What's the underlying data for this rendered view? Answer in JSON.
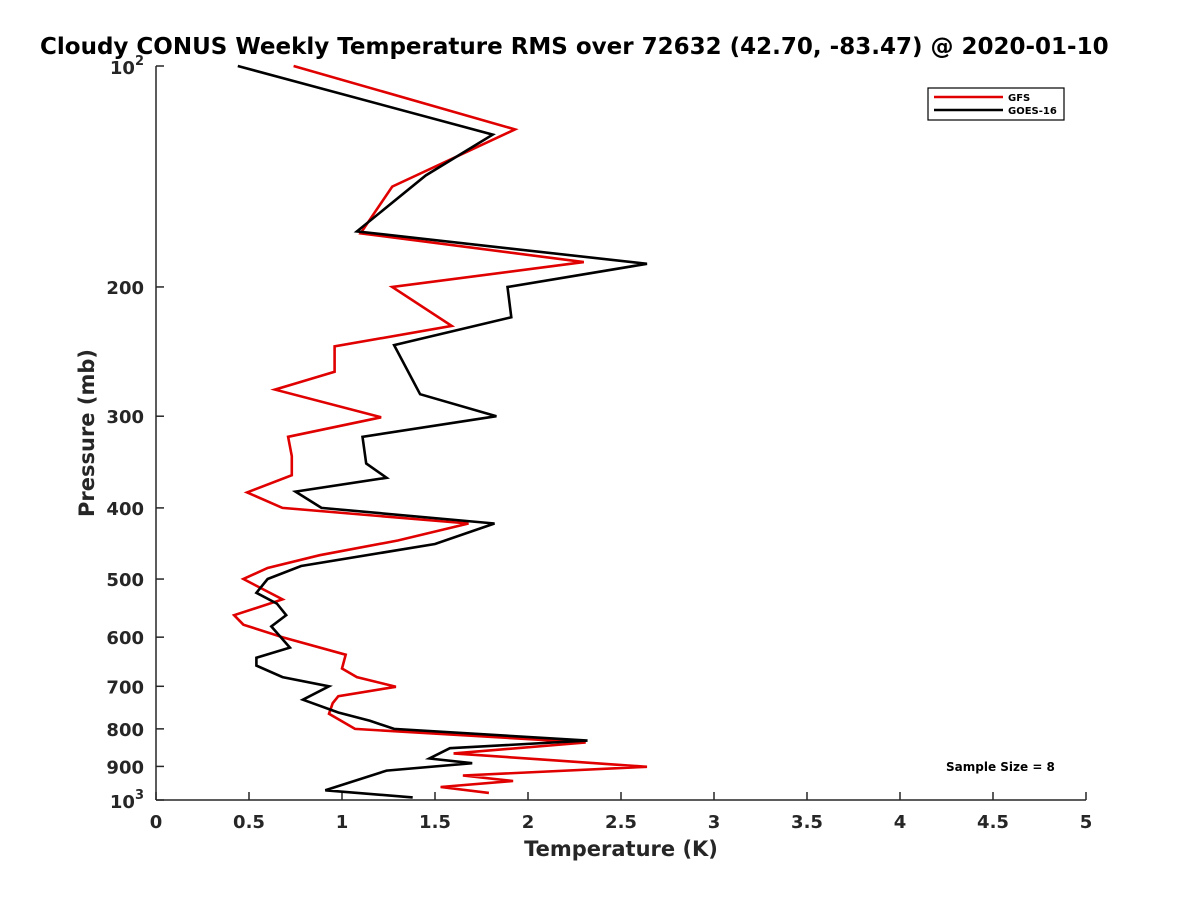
{
  "chart_data": {
    "type": "line",
    "title": "Cloudy CONUS Weekly Temperature RMS over 72632 (42.70, -83.47) @ 2020-01-10",
    "xlabel": "Temperature (K)",
    "ylabel": "Pressure (mb)",
    "xlim": [
      0,
      5
    ],
    "ylim": [
      100,
      1000
    ],
    "y_scale": "log",
    "y_reversed": true,
    "grid": false,
    "legend_placement": "top-right",
    "x_ticks": [
      {
        "value": 0,
        "label": "0"
      },
      {
        "value": 0.5,
        "label": "0.5"
      },
      {
        "value": 1,
        "label": "1"
      },
      {
        "value": 1.5,
        "label": "1.5"
      },
      {
        "value": 2,
        "label": "2"
      },
      {
        "value": 2.5,
        "label": "2.5"
      },
      {
        "value": 3,
        "label": "3"
      },
      {
        "value": 3.5,
        "label": "3.5"
      },
      {
        "value": 4,
        "label": "4"
      },
      {
        "value": 4.5,
        "label": "4.5"
      },
      {
        "value": 5,
        "label": "5"
      }
    ],
    "y_ticks": [
      {
        "value": 100,
        "base": "10",
        "exp": "2"
      },
      {
        "value": 200,
        "label": "200"
      },
      {
        "value": 300,
        "label": "300"
      },
      {
        "value": 400,
        "label": "400"
      },
      {
        "value": 500,
        "label": "500"
      },
      {
        "value": 600,
        "label": "600"
      },
      {
        "value": 700,
        "label": "700"
      },
      {
        "value": 800,
        "label": "800"
      },
      {
        "value": 900,
        "label": "900"
      },
      {
        "value": 1000,
        "base": "10",
        "exp": "3"
      }
    ],
    "annotation": "Sample Size = 8",
    "series": [
      {
        "name": "GFS",
        "color": "#e00000",
        "points": [
          [
            0.74,
            100
          ],
          [
            1.93,
            122
          ],
          [
            1.27,
            146
          ],
          [
            1.1,
            169
          ],
          [
            2.3,
            185
          ],
          [
            1.27,
            200
          ],
          [
            1.59,
            226
          ],
          [
            0.96,
            241
          ],
          [
            0.96,
            261
          ],
          [
            0.64,
            276
          ],
          [
            1.21,
            301
          ],
          [
            0.71,
            320
          ],
          [
            0.73,
            340
          ],
          [
            0.73,
            361
          ],
          [
            0.49,
            381
          ],
          [
            0.68,
            400
          ],
          [
            1.68,
            420
          ],
          [
            1.3,
            443
          ],
          [
            0.88,
            464
          ],
          [
            0.6,
            483
          ],
          [
            0.47,
            500
          ],
          [
            0.68,
            533
          ],
          [
            0.42,
            560
          ],
          [
            0.47,
            577
          ],
          [
            0.68,
            600
          ],
          [
            1.02,
            634
          ],
          [
            1.0,
            662
          ],
          [
            1.08,
            680
          ],
          [
            1.29,
            701
          ],
          [
            0.98,
            722
          ],
          [
            0.95,
            738
          ],
          [
            0.93,
            763
          ],
          [
            1.07,
            800
          ],
          [
            2.31,
            835
          ],
          [
            1.6,
            864
          ],
          [
            2.06,
            880
          ],
          [
            2.64,
            901
          ],
          [
            1.65,
            926
          ],
          [
            1.92,
            942
          ],
          [
            1.53,
            960
          ],
          [
            1.79,
            978
          ]
        ]
      },
      {
        "name": "GOES-16",
        "color": "#000000",
        "points": [
          [
            0.44,
            100
          ],
          [
            1.81,
            124
          ],
          [
            1.45,
            141
          ],
          [
            1.08,
            168
          ],
          [
            2.64,
            186
          ],
          [
            1.89,
            200
          ],
          [
            1.91,
            220
          ],
          [
            1.28,
            240
          ],
          [
            1.42,
            280
          ],
          [
            1.83,
            300
          ],
          [
            1.11,
            320
          ],
          [
            1.13,
            348
          ],
          [
            1.24,
            364
          ],
          [
            0.75,
            380
          ],
          [
            0.89,
            400
          ],
          [
            1.82,
            420
          ],
          [
            1.5,
            448
          ],
          [
            0.78,
            480
          ],
          [
            0.6,
            500
          ],
          [
            0.54,
            522
          ],
          [
            0.65,
            540
          ],
          [
            0.7,
            560
          ],
          [
            0.62,
            580
          ],
          [
            0.72,
            620
          ],
          [
            0.54,
            640
          ],
          [
            0.54,
            656
          ],
          [
            0.68,
            680
          ],
          [
            0.93,
            700
          ],
          [
            0.79,
            730
          ],
          [
            0.98,
            760
          ],
          [
            1.15,
            780
          ],
          [
            1.28,
            800
          ],
          [
            2.32,
            830
          ],
          [
            1.58,
            850
          ],
          [
            1.47,
            878
          ],
          [
            1.7,
            891
          ],
          [
            1.24,
            912
          ],
          [
            0.91,
            970
          ],
          [
            1.38,
            992
          ]
        ]
      }
    ]
  }
}
